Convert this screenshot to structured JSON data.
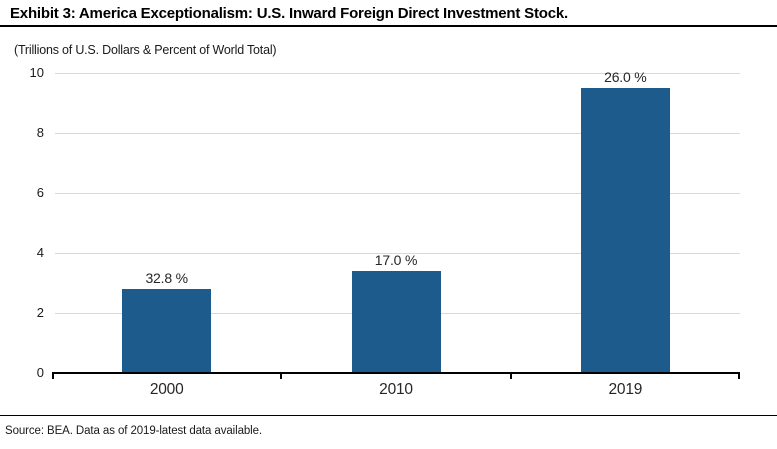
{
  "header": {
    "title": "Exhibit 3: America Exceptionalism: U.S. Inward Foreign Direct Investment Stock.",
    "subtitle": "(Trillions of U.S. Dollars & Percent of World Total)"
  },
  "chart_data": {
    "type": "bar",
    "title": "Exhibit 3: America Exceptionalism: U.S. Inward Foreign Direct Investment Stock.",
    "subtitle": "(Trillions of U.S. Dollars & Percent of World Total)",
    "categories": [
      "2000",
      "2010",
      "2019"
    ],
    "values": [
      2.8,
      3.4,
      9.5
    ],
    "bar_labels": [
      "32.8 %",
      "17.0 %",
      "26.0 %"
    ],
    "xlabel": "",
    "ylabel": "",
    "ylim": [
      0,
      10
    ],
    "yticks": [
      0,
      2,
      4,
      6,
      8,
      10
    ],
    "grid": true,
    "legend": false,
    "bar_color": "#1d5b8c"
  },
  "footer": {
    "source": "Source: BEA. Data as of 2019-latest data available."
  },
  "colors": {
    "bar": "#1d5b8c",
    "gridline": "#d9d9d9",
    "axis": "#000000",
    "text": "#262626"
  }
}
